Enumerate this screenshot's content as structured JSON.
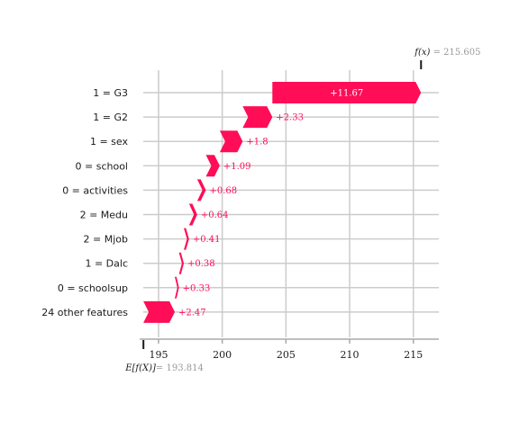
{
  "chart_data": {
    "type": "waterfall",
    "colors": {
      "positive": "#ff0d57",
      "grid": "#cccccc",
      "axis": "#aaaaaa",
      "text": "#1a1a1a",
      "muted": "#999999"
    },
    "base_value": 193.814,
    "output_value": 215.605,
    "fx_label": {
      "symbol": "f(x)",
      "value": "= 215.605"
    },
    "efx_label": {
      "symbol": "E[f(X)]",
      "value": "= 193.814"
    },
    "xlim": [
      193.8,
      217
    ],
    "xticks": [
      195,
      200,
      205,
      210,
      215
    ],
    "features": [
      {
        "label": "1 = G3",
        "value": 11.67,
        "text": "+11.67"
      },
      {
        "label": "1 = G2",
        "value": 2.33,
        "text": "+2.33"
      },
      {
        "label": "1 = sex",
        "value": 1.8,
        "text": "+1.8"
      },
      {
        "label": "0 = school",
        "value": 1.09,
        "text": "+1.09"
      },
      {
        "label": "0 = activities",
        "value": 0.68,
        "text": "+0.68"
      },
      {
        "label": "2 = Medu",
        "value": 0.64,
        "text": "+0.64"
      },
      {
        "label": "2 = Mjob",
        "value": 0.41,
        "text": "+0.41"
      },
      {
        "label": "1 = Dalc",
        "value": 0.38,
        "text": "+0.38"
      },
      {
        "label": "0 = schoolsup",
        "value": 0.33,
        "text": "+0.33"
      },
      {
        "label": "24 other features",
        "value": 2.47,
        "text": "+2.47"
      }
    ]
  }
}
